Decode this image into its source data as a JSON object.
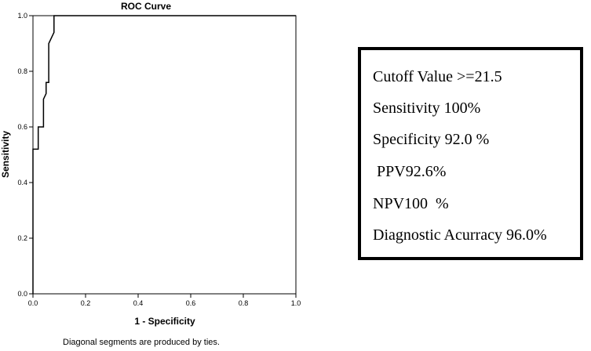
{
  "chart_data": {
    "type": "line",
    "title": "ROC Curve",
    "xlabel": "1 - Specificity",
    "ylabel": "Sensitivity",
    "xlim": [
      0.0,
      1.0
    ],
    "ylim": [
      0.0,
      1.0
    ],
    "x_ticks": [
      "0.0",
      "0.2",
      "0.4",
      "0.6",
      "0.8",
      "1.0"
    ],
    "y_ticks": [
      "0.0",
      "0.2",
      "0.4",
      "0.6",
      "0.8",
      "1.0"
    ],
    "grid": false,
    "x": [
      0.0,
      0.0,
      0.02,
      0.02,
      0.04,
      0.04,
      0.05,
      0.05,
      0.06,
      0.06,
      0.08,
      0.08,
      1.0
    ],
    "y": [
      0.0,
      0.52,
      0.52,
      0.6,
      0.6,
      0.7,
      0.72,
      0.76,
      0.76,
      0.9,
      0.94,
      1.0,
      1.0
    ]
  },
  "stats_box": {
    "lines": [
      "Cutoff Value >=21.5",
      "Sensitivity 100%",
      "Specificity 92.0 %",
      " PPV92.6%",
      "NPV100  %",
      "Diagnostic Acurracy 96.0%"
    ]
  },
  "footnote": "Diagonal segments are produced by ties."
}
